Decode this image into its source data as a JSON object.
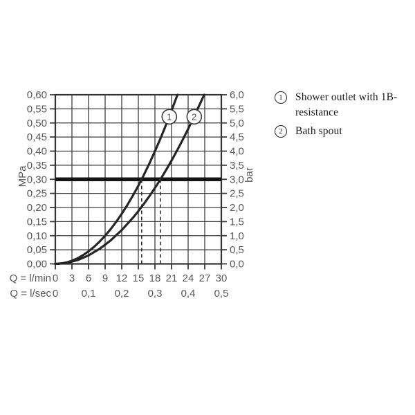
{
  "page": {
    "background": "#ffffff"
  },
  "colors": {
    "grid": "#3d3d3f",
    "border": "#333335",
    "tick": "#3a3a3c",
    "axis_text": "#58585a",
    "curve": "#252527",
    "reference_line": "#141414",
    "dashed_guide": "#2e2e30",
    "marker_fill": "#ffffff",
    "marker_stroke": "#39393b",
    "marker_text": "#505052",
    "legend_text": "#1b1b1b"
  },
  "chart_data": {
    "type": "line",
    "title": "",
    "grid": true,
    "x_axis": {
      "label": "Q = l/min",
      "range": [
        0,
        30
      ],
      "ticks": [
        0,
        3,
        6,
        9,
        12,
        15,
        18,
        21,
        24,
        27,
        30
      ],
      "tick_labels": [
        "0",
        "3",
        "6",
        "9",
        "12",
        "15",
        "18",
        "21",
        "24",
        "27",
        "30"
      ]
    },
    "x_axis_secondary": {
      "label": "Q = l/sec",
      "ticks": [
        0,
        6,
        12,
        18,
        24,
        30
      ],
      "tick_labels": [
        "0",
        "0,1",
        "0,2",
        "0,3",
        "0,4",
        "0,5"
      ]
    },
    "y_axis_left": {
      "label": "MPa",
      "range": [
        0,
        0.6
      ],
      "ticks": [
        0,
        0.05,
        0.1,
        0.15,
        0.2,
        0.25,
        0.3,
        0.35,
        0.4,
        0.45,
        0.5,
        0.55,
        0.6
      ],
      "tick_labels": [
        "0,00",
        "0,05",
        "0,10",
        "0,15",
        "0,20",
        "0,25",
        "0,30",
        "0,35",
        "0,40",
        "0,45",
        "0,50",
        "0,55",
        "0,60"
      ]
    },
    "y_axis_right": {
      "label": "bar",
      "range": [
        0,
        6.0
      ],
      "tick_labels": [
        "0,0",
        "0,5",
        "1,0",
        "1,5",
        "2,0",
        "2,5",
        "3,0",
        "3,5",
        "4,0",
        "4,5",
        "5,0",
        "5,5",
        "6,0"
      ]
    },
    "reference_line": {
      "mpa": 0.3,
      "bar": 3.0
    },
    "dashed_guides": [
      {
        "l_min": 15.6,
        "to_mpa": 0.3
      },
      {
        "l_min": 19.0,
        "to_mpa": 0.3
      }
    ],
    "series": [
      {
        "id": "1",
        "name": "Shower outlet with 1B-resistance",
        "marker": {
          "l_min": 20.6,
          "mpa": 0.522
        },
        "flow_at_3bar_lmin": 15.6,
        "points": [
          [
            0,
            0
          ],
          [
            1,
            0.0012
          ],
          [
            2,
            0.0049
          ],
          [
            3,
            0.0111
          ],
          [
            4,
            0.0197
          ],
          [
            5,
            0.0308
          ],
          [
            6,
            0.0444
          ],
          [
            7,
            0.0604
          ],
          [
            8,
            0.0789
          ],
          [
            9,
            0.0999
          ],
          [
            10,
            0.1233
          ],
          [
            11,
            0.1492
          ],
          [
            12,
            0.1775
          ],
          [
            13,
            0.2083
          ],
          [
            14,
            0.2416
          ],
          [
            15,
            0.2774
          ],
          [
            15.6,
            0.3
          ],
          [
            16,
            0.3156
          ],
          [
            17,
            0.3563
          ],
          [
            18,
            0.3994
          ],
          [
            19,
            0.445
          ],
          [
            20,
            0.4931
          ],
          [
            21,
            0.5436
          ],
          [
            22,
            0.5966
          ],
          [
            22.1,
            0.6
          ]
        ]
      },
      {
        "id": "2",
        "name": "Bath spout",
        "marker": {
          "l_min": 25.1,
          "mpa": 0.522
        },
        "flow_at_3bar_lmin": 19.0,
        "points": [
          [
            0,
            0
          ],
          [
            2,
            0.0033
          ],
          [
            4,
            0.0133
          ],
          [
            6,
            0.0299
          ],
          [
            8,
            0.0532
          ],
          [
            10,
            0.0831
          ],
          [
            12,
            0.1197
          ],
          [
            14,
            0.1629
          ],
          [
            15,
            0.187
          ],
          [
            16,
            0.2128
          ],
          [
            17,
            0.2402
          ],
          [
            18,
            0.2693
          ],
          [
            19,
            0.3
          ],
          [
            20,
            0.3324
          ],
          [
            21,
            0.3665
          ],
          [
            22,
            0.4022
          ],
          [
            23,
            0.4396
          ],
          [
            24,
            0.4786
          ],
          [
            25,
            0.5194
          ],
          [
            26,
            0.5617
          ],
          [
            26.9,
            0.6
          ]
        ]
      }
    ]
  },
  "legend": {
    "items": [
      {
        "symbol": "1",
        "lines": [
          "Shower outlet with 1B-",
          "resistance"
        ]
      },
      {
        "symbol": "2",
        "lines": [
          "Bath spout"
        ]
      }
    ]
  }
}
